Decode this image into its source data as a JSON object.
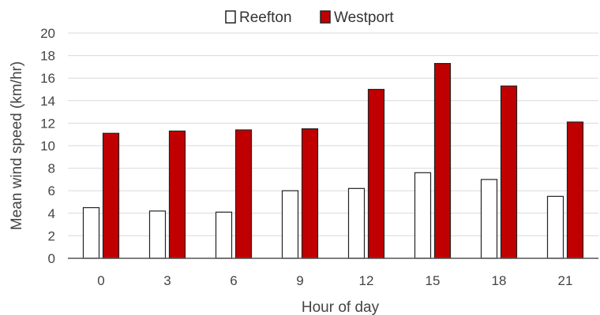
{
  "chart_data": {
    "type": "bar",
    "title": "",
    "xlabel": "Hour of day",
    "ylabel": "Mean wind speed (km/hr)",
    "categories": [
      "0",
      "3",
      "6",
      "9",
      "12",
      "15",
      "18",
      "21"
    ],
    "ylim": [
      0,
      20
    ],
    "yticks": [
      "0",
      "2",
      "4",
      "6",
      "8",
      "10",
      "12",
      "14",
      "16",
      "18",
      "20"
    ],
    "grid": true,
    "legend_position": "top",
    "series": [
      {
        "name": "Reefton",
        "values": [
          4.5,
          4.2,
          4.1,
          6.0,
          6.2,
          7.6,
          7.0,
          5.5
        ],
        "color": "#ffffff",
        "stroke": "#222222"
      },
      {
        "name": "Westport",
        "values": [
          11.1,
          11.3,
          11.4,
          11.5,
          15.0,
          17.3,
          15.3,
          12.1
        ],
        "color": "#c00000",
        "stroke": "#222222"
      }
    ]
  }
}
